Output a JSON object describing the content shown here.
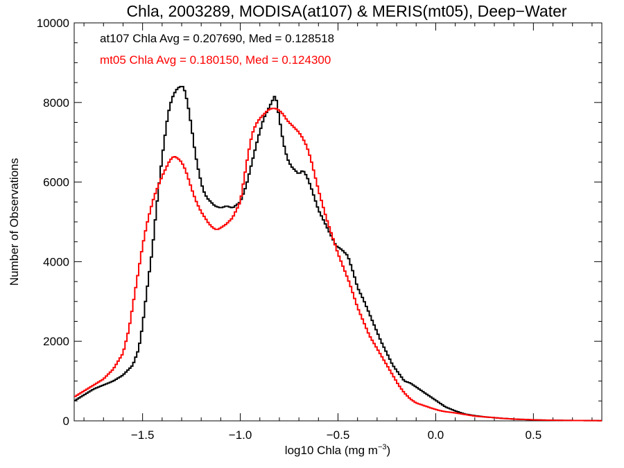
{
  "chart_data": {
    "type": "line",
    "step": true,
    "title": "Chla, 2003289, MODISA(at107) & MERIS(mt05), Deep−Water",
    "xlabel": "log10 Chla (mg m",
    "xlabel_sup": "−3",
    "xlabel_suffix": ")",
    "ylabel": "Number of Observations",
    "xlim": [
      -1.85,
      0.85
    ],
    "ylim": [
      0,
      10000
    ],
    "x_ticks": [
      {
        "value": -1.5,
        "label": "−1.5"
      },
      {
        "value": -1.0,
        "label": "−1.0"
      },
      {
        "value": -0.5,
        "label": "−0.5"
      },
      {
        "value": 0.0,
        "label": "0.0"
      },
      {
        "value": 0.5,
        "label": "0.5"
      }
    ],
    "y_ticks": [
      {
        "value": 0,
        "label": "0"
      },
      {
        "value": 2000,
        "label": "2000"
      },
      {
        "value": 4000,
        "label": "4000"
      },
      {
        "value": 6000,
        "label": "6000"
      },
      {
        "value": 8000,
        "label": "8000"
      },
      {
        "value": 10000,
        "label": "10000"
      }
    ],
    "grid": false,
    "annotations": [
      {
        "text": "at107 Chla Avg = 0.207690, Med = 0.128518",
        "color": "#000000"
      },
      {
        "text": "mt05 Chla Avg = 0.180150, Med = 0.124300",
        "color": "#ff0000"
      }
    ],
    "series": [
      {
        "color": "#000000",
        "x": [
          -1.85,
          -1.8,
          -1.75,
          -1.7,
          -1.65,
          -1.6,
          -1.55,
          -1.52,
          -1.5,
          -1.48,
          -1.45,
          -1.43,
          -1.41,
          -1.39,
          -1.37,
          -1.35,
          -1.33,
          -1.31,
          -1.29,
          -1.27,
          -1.25,
          -1.23,
          -1.21,
          -1.19,
          -1.17,
          -1.15,
          -1.13,
          -1.1,
          -1.07,
          -1.04,
          -1.0,
          -0.97,
          -0.94,
          -0.91,
          -0.88,
          -0.85,
          -0.82,
          -0.8,
          -0.78,
          -0.76,
          -0.74,
          -0.72,
          -0.7,
          -0.68,
          -0.66,
          -0.64,
          -0.62,
          -0.6,
          -0.57,
          -0.54,
          -0.51,
          -0.48,
          -0.45,
          -0.42,
          -0.4,
          -0.37,
          -0.34,
          -0.31,
          -0.28,
          -0.25,
          -0.22,
          -0.19,
          -0.16,
          -0.13,
          -0.1,
          -0.07,
          -0.04,
          -0.01,
          0.02,
          0.05,
          0.1,
          0.15,
          0.2,
          0.25,
          0.3,
          0.35,
          0.4,
          0.45,
          0.5,
          0.55,
          0.6,
          0.65,
          0.7,
          0.75,
          0.8,
          0.85
        ],
        "y": [
          500,
          650,
          800,
          900,
          1000,
          1150,
          1400,
          1800,
          2400,
          3200,
          4300,
          5300,
          6200,
          7000,
          7700,
          8100,
          8300,
          8400,
          8400,
          8000,
          7400,
          6700,
          6200,
          5800,
          5600,
          5500,
          5400,
          5350,
          5400,
          5350,
          5500,
          5900,
          6500,
          7100,
          7600,
          7900,
          8200,
          7600,
          7000,
          6600,
          6400,
          6300,
          6200,
          6300,
          6150,
          5900,
          5600,
          5300,
          5000,
          4700,
          4400,
          4300,
          4150,
          3700,
          3350,
          3050,
          2700,
          2350,
          2000,
          1700,
          1400,
          1200,
          1000,
          950,
          850,
          750,
          650,
          550,
          450,
          350,
          250,
          170,
          130,
          100,
          80,
          60,
          45,
          35,
          25,
          20,
          15,
          12,
          10,
          8,
          6,
          5
        ]
      },
      {
        "color": "#ff0000",
        "x": [
          -1.85,
          -1.8,
          -1.75,
          -1.7,
          -1.65,
          -1.6,
          -1.57,
          -1.55,
          -1.52,
          -1.5,
          -1.48,
          -1.46,
          -1.44,
          -1.42,
          -1.4,
          -1.38,
          -1.36,
          -1.34,
          -1.32,
          -1.3,
          -1.28,
          -1.26,
          -1.24,
          -1.22,
          -1.2,
          -1.18,
          -1.16,
          -1.14,
          -1.12,
          -1.1,
          -1.07,
          -1.04,
          -1.0,
          -0.98,
          -0.96,
          -0.94,
          -0.92,
          -0.9,
          -0.88,
          -0.86,
          -0.84,
          -0.82,
          -0.8,
          -0.78,
          -0.76,
          -0.74,
          -0.72,
          -0.7,
          -0.68,
          -0.66,
          -0.64,
          -0.62,
          -0.6,
          -0.58,
          -0.56,
          -0.54,
          -0.52,
          -0.5,
          -0.48,
          -0.46,
          -0.44,
          -0.42,
          -0.4,
          -0.37,
          -0.34,
          -0.31,
          -0.28,
          -0.25,
          -0.22,
          -0.19,
          -0.16,
          -0.13,
          -0.1,
          -0.07,
          -0.04,
          -0.01,
          0.02,
          0.05,
          0.1,
          0.15,
          0.2,
          0.25,
          0.3,
          0.35,
          0.4,
          0.45,
          0.5,
          0.55,
          0.6,
          0.65,
          0.7,
          0.75,
          0.8,
          0.85
        ],
        "y": [
          600,
          750,
          900,
          1050,
          1300,
          1700,
          2300,
          2900,
          3800,
          4400,
          4900,
          5300,
          5650,
          5900,
          6150,
          6350,
          6550,
          6650,
          6600,
          6500,
          6300,
          6000,
          5700,
          5450,
          5250,
          5100,
          4950,
          4850,
          4800,
          4850,
          4950,
          5100,
          5500,
          6100,
          6700,
          7200,
          7450,
          7600,
          7700,
          7800,
          7850,
          7850,
          7800,
          7700,
          7550,
          7450,
          7350,
          7250,
          7100,
          6900,
          6600,
          6200,
          5800,
          5450,
          5100,
          4800,
          4500,
          4200,
          3950,
          3700,
          3450,
          3150,
          2850,
          2500,
          2150,
          1900,
          1650,
          1400,
          1150,
          900,
          700,
          550,
          450,
          400,
          350,
          300,
          260,
          230,
          200,
          160,
          120,
          100,
          80,
          60,
          45,
          35,
          25,
          20,
          15,
          12,
          10,
          8,
          6,
          5
        ]
      }
    ]
  }
}
